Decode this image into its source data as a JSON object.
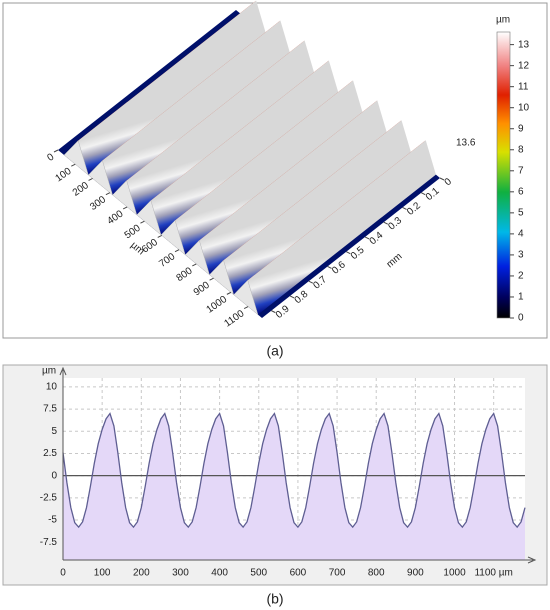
{
  "panel_a": {
    "caption": "(a)",
    "x_axis": {
      "label": "µm",
      "lim": [
        0,
        1180
      ],
      "ticks": [
        0,
        100,
        200,
        300,
        400,
        500,
        600,
        700,
        800,
        900,
        1000,
        1100
      ]
    },
    "y_axis": {
      "label": "mm",
      "lim": [
        0,
        0.95
      ],
      "ticks": [
        0,
        0.1,
        0.2,
        0.3,
        0.4,
        0.5,
        0.6,
        0.7,
        0.8,
        0.9
      ]
    },
    "z_max": 13.6,
    "colorbar": {
      "label": "µm",
      "lim": [
        0,
        13.6
      ],
      "ticks": [
        0,
        1,
        2,
        3,
        4,
        5,
        6,
        7,
        8,
        9,
        10,
        11,
        12,
        13
      ]
    }
  },
  "chart_data": {
    "type": "line",
    "caption": "(b)",
    "ylabel": "µm",
    "xlim": [
      0,
      1180
    ],
    "ylim": [
      -9.5,
      11
    ],
    "xticks": [
      0,
      100,
      200,
      300,
      400,
      500,
      600,
      700,
      800,
      900,
      1000,
      {
        "value": 1100,
        "label": "1100 µm"
      }
    ],
    "yticks": [
      -7.5,
      -5,
      -2.5,
      0,
      2.5,
      5,
      7.5,
      10
    ],
    "grid": true,
    "x": [
      0,
      10,
      20,
      30,
      40,
      50,
      60,
      70,
      80,
      90,
      100,
      110,
      120,
      130,
      140,
      150,
      160,
      170,
      180,
      190,
      200,
      210,
      220,
      230,
      240,
      250,
      260,
      270,
      280,
      290,
      300,
      310,
      320,
      330,
      340,
      350,
      360,
      370,
      380,
      390,
      400,
      410,
      420,
      430,
      440,
      450,
      460,
      470,
      480,
      490,
      500,
      510,
      520,
      530,
      540,
      550,
      560,
      570,
      580,
      590,
      600,
      610,
      620,
      630,
      640,
      650,
      660,
      670,
      680,
      690,
      700,
      710,
      720,
      730,
      740,
      750,
      760,
      770,
      780,
      790,
      800,
      810,
      820,
      830,
      840,
      850,
      860,
      870,
      880,
      890,
      900,
      910,
      920,
      930,
      940,
      950,
      960,
      970,
      980,
      990,
      1000,
      1010,
      1020,
      1030,
      1040,
      1050,
      1060,
      1070,
      1080,
      1090,
      1100,
      1110,
      1120,
      1130,
      1140,
      1150,
      1160,
      1170,
      1180
    ],
    "series": [
      {
        "color": "#5e5e92",
        "fill_color": "#e4d8f8",
        "values": [
          2.6,
          -0.8,
          -3.6,
          -5.3,
          -5.8,
          -5.2,
          -3.6,
          -1.2,
          1.4,
          3.6,
          5.2,
          6.4,
          7.0,
          5.6,
          2.6,
          -0.8,
          -3.6,
          -5.3,
          -5.8,
          -5.2,
          -3.6,
          -1.2,
          1.4,
          3.6,
          5.2,
          6.4,
          7.0,
          5.6,
          2.6,
          -0.8,
          -3.6,
          -5.3,
          -5.8,
          -5.2,
          -3.6,
          -1.2,
          1.4,
          3.6,
          5.2,
          6.4,
          7.0,
          5.6,
          2.6,
          -0.8,
          -3.6,
          -5.3,
          -5.8,
          -5.2,
          -3.6,
          -1.2,
          1.4,
          3.6,
          5.2,
          6.4,
          7.0,
          5.6,
          2.6,
          -0.8,
          -3.6,
          -5.3,
          -5.8,
          -5.2,
          -3.6,
          -1.2,
          1.4,
          3.6,
          5.2,
          6.4,
          7.0,
          5.6,
          2.6,
          -0.8,
          -3.6,
          -5.3,
          -5.8,
          -5.2,
          -3.6,
          -1.2,
          1.4,
          3.6,
          5.2,
          6.4,
          7.0,
          5.6,
          2.6,
          -0.8,
          -3.6,
          -5.3,
          -5.8,
          -5.2,
          -3.6,
          -1.2,
          1.4,
          3.6,
          5.2,
          6.4,
          7.0,
          5.6,
          2.6,
          -0.8,
          -3.6,
          -5.3,
          -5.8,
          -5.2,
          -3.6,
          -1.2,
          1.4,
          3.6,
          5.2,
          6.4,
          7.0,
          5.6,
          2.6,
          -0.8,
          -3.6,
          -5.3,
          -5.8,
          -5.2,
          -3.6
        ]
      }
    ]
  }
}
